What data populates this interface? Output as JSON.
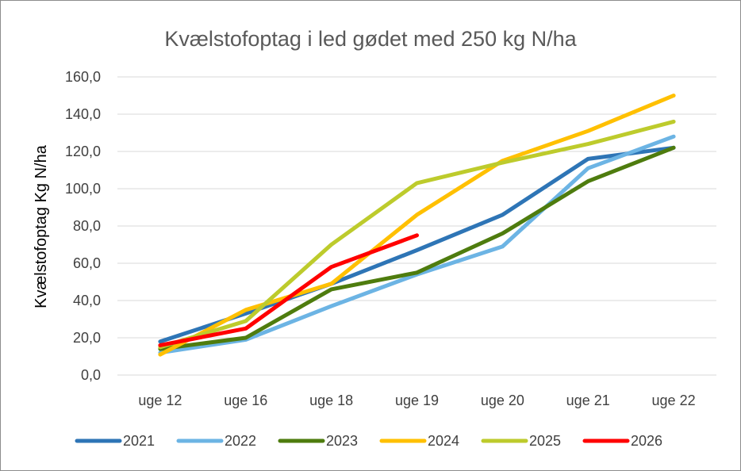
{
  "chart_data": {
    "type": "line",
    "title": "Kvælstofoptag i led gødet med 250 kg N/ha",
    "xlabel": "",
    "ylabel": "Kvælstofoptag Kg N/ha",
    "categories": [
      "uge 12",
      "uge 16",
      "uge 18",
      "uge 19",
      "uge 20",
      "uge 21",
      "uge 22"
    ],
    "yticks": [
      "0,0",
      "20,0",
      "40,0",
      "60,0",
      "80,0",
      "100,0",
      "120,0",
      "140,0",
      "160,0"
    ],
    "ylim": [
      0,
      160
    ],
    "grid": true,
    "legend_position": "bottom",
    "series": [
      {
        "name": "2021",
        "color": "#2E75B6",
        "values": [
          18,
          33,
          49,
          67,
          86,
          116,
          122
        ]
      },
      {
        "name": "2022",
        "color": "#6CB4E4",
        "values": [
          12,
          19,
          37,
          54,
          69,
          111,
          128
        ]
      },
      {
        "name": "2023",
        "color": "#4E7C0E",
        "values": [
          14,
          20,
          46,
          55,
          76,
          104,
          122
        ]
      },
      {
        "name": "2024",
        "color": "#FFC000",
        "values": [
          11,
          35,
          49,
          86,
          115,
          131,
          150
        ]
      },
      {
        "name": "2025",
        "color": "#BDCB2C",
        "values": [
          15,
          29,
          70,
          103,
          114,
          124,
          136
        ]
      },
      {
        "name": "2026",
        "color": "#FF0000",
        "values": [
          16,
          25,
          58,
          75,
          null,
          null,
          null
        ]
      }
    ]
  }
}
